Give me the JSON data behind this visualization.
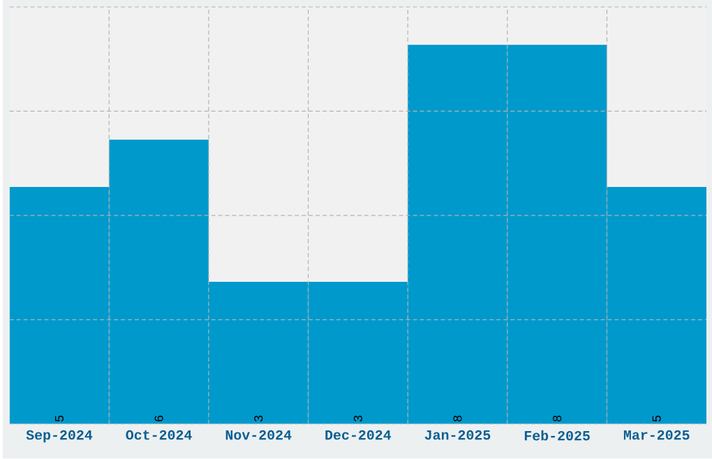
{
  "chart_data": {
    "type": "bar",
    "categories": [
      "Sep-2024",
      "Oct-2024",
      "Nov-2024",
      "Dec-2024",
      "Jan-2025",
      "Feb-2025",
      "Mar-2025"
    ],
    "values": [
      5,
      6,
      3,
      3,
      8,
      8,
      5
    ],
    "color": "#0099cc",
    "ylim": [
      0,
      8.8
    ],
    "yticks": [
      {
        "value": 0,
        "label": null
      },
      {
        "value": 2.2,
        "label": null
      },
      {
        "value": 4.4,
        "label": null
      },
      {
        "value": 6.6,
        "label": null
      },
      {
        "value": 8.8,
        "label": null
      }
    ],
    "tick_labels": "x",
    "grid": true,
    "data_labels": true
  }
}
